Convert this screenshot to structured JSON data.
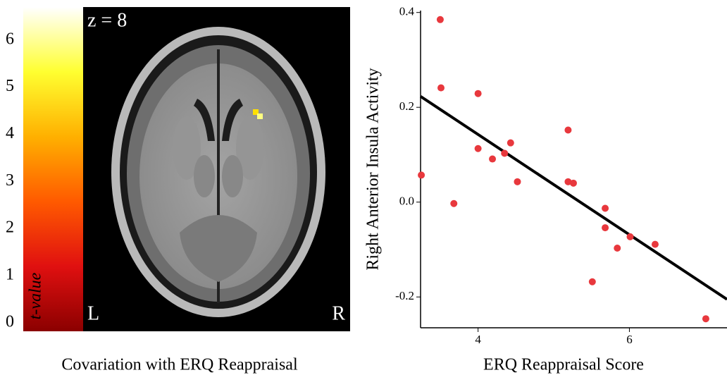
{
  "chart_data": [
    {
      "type": "colorbar",
      "caption": "Covariation with ERQ Reappraisal",
      "colorbar_label": "t-value",
      "annotations": [
        "z = 8",
        "L",
        "R"
      ],
      "ylim": [
        -0.18,
        6.7
      ],
      "yticks": [
        0,
        1,
        2,
        3,
        4,
        5,
        6
      ],
      "colors": [
        "#8b0000",
        "#e01010",
        "#ff5a00",
        "#ffb000",
        "#ffff30",
        "#ffffff"
      ]
    },
    {
      "type": "scatter",
      "xlabel": "ERQ Reappraisal Score",
      "ylabel": "Right Anterior Insula Activity",
      "color": "#e8383d",
      "x": [
        3.25,
        3.5,
        3.51,
        3.68,
        4.0,
        4.0,
        4.19,
        4.35,
        4.43,
        4.52,
        5.19,
        5.19,
        5.26,
        5.51,
        5.68,
        5.68,
        5.84,
        6.01,
        6.34,
        7.01
      ],
      "y": [
        0.057,
        0.385,
        0.241,
        -0.003,
        0.229,
        0.113,
        0.091,
        0.103,
        0.125,
        0.043,
        0.152,
        0.043,
        0.04,
        -0.168,
        -0.013,
        -0.054,
        -0.097,
        -0.073,
        -0.089,
        -0.246
      ],
      "trendline": {
        "x": [
          3.24,
          7.29
        ],
        "y": [
          0.223,
          -0.205
        ]
      },
      "xlim": [
        3.24,
        7.29
      ],
      "ylim": [
        -0.265,
        0.404
      ],
      "xticks": [
        4,
        6
      ],
      "yticks": [
        -0.2,
        {
          "value": 0,
          "label": "0.0"
        },
        0.2,
        0.4
      ]
    }
  ]
}
